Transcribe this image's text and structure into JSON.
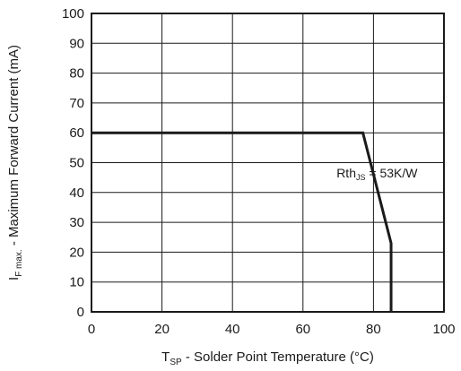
{
  "chart_data": {
    "type": "line",
    "title": "",
    "xlabel": {
      "main": "T",
      "sub": "SP",
      "rest": " - Solder Point Temperature (°C)"
    },
    "ylabel": {
      "main": "I",
      "sub": "F max.",
      "rest": " - Maximum Forward Current (mA)"
    },
    "xlim": [
      0,
      100
    ],
    "ylim": [
      0,
      100
    ],
    "xticks": [
      "0",
      "20",
      "40",
      "60",
      "80",
      "100"
    ],
    "yticks": [
      "0",
      "10",
      "20",
      "30",
      "40",
      "50",
      "60",
      "70",
      "80",
      "90",
      "100"
    ],
    "grid": true,
    "series": [
      {
        "x": [
          0,
          77,
          85,
          85
        ],
        "y": [
          60,
          60,
          23,
          0
        ]
      }
    ],
    "annotation": {
      "main": "Rth",
      "sub": "JS",
      "rest": " = 53K/W",
      "x": 81,
      "y": 45
    }
  }
}
